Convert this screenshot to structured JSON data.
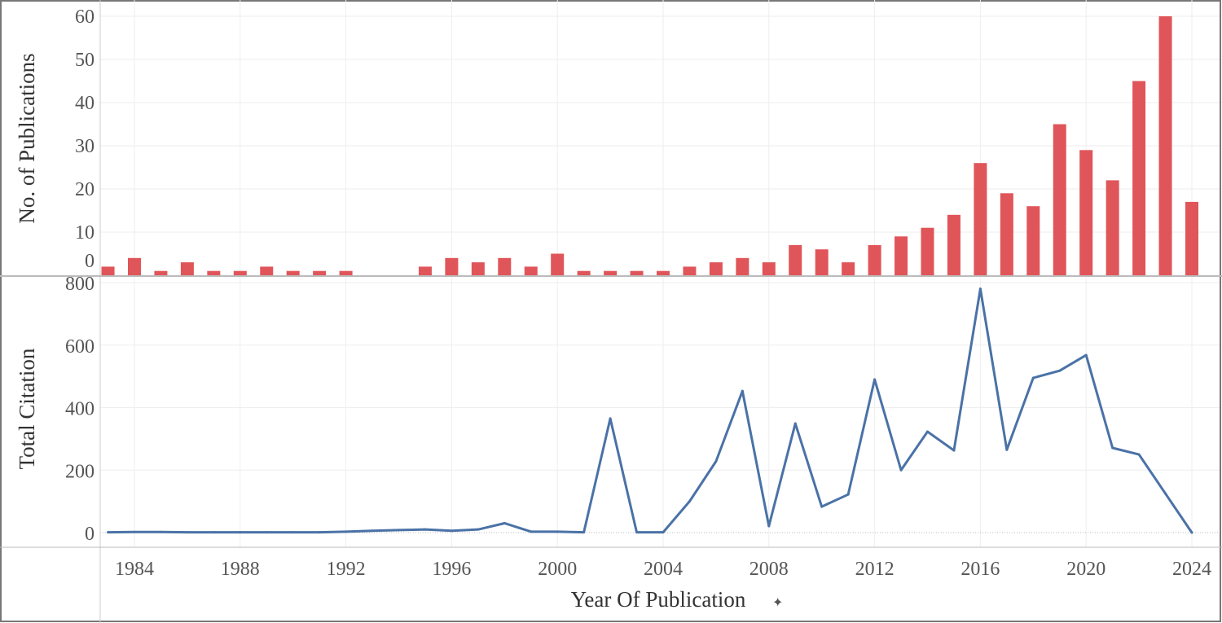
{
  "chart_data": [
    {
      "type": "bar",
      "ylabel": "No. of Publications",
      "ylim": [
        0,
        60
      ],
      "yticks": [
        0,
        10,
        20,
        30,
        40,
        50,
        60
      ],
      "color": "#e05559",
      "x": [
        1983,
        1984,
        1985,
        1986,
        1987,
        1988,
        1989,
        1990,
        1991,
        1992,
        1993,
        1994,
        1995,
        1996,
        1997,
        1998,
        1999,
        2000,
        2001,
        2002,
        2003,
        2004,
        2005,
        2006,
        2007,
        2008,
        2009,
        2010,
        2011,
        2012,
        2013,
        2014,
        2015,
        2016,
        2017,
        2018,
        2019,
        2020,
        2021,
        2022,
        2023,
        2024
      ],
      "values": [
        2,
        4,
        1,
        3,
        1,
        1,
        2,
        1,
        1,
        1,
        0,
        0,
        2,
        4,
        3,
        4,
        2,
        5,
        1,
        1,
        1,
        1,
        2,
        3,
        4,
        3,
        7,
        6,
        3,
        7,
        9,
        11,
        14,
        26,
        19,
        16,
        35,
        29,
        22,
        45,
        60,
        17
      ],
      "grid": true
    },
    {
      "type": "line",
      "ylabel": "Total Citation",
      "xlabel": "Year Of Publication",
      "ylim": [
        0,
        800
      ],
      "yticks": [
        0,
        200,
        400,
        600,
        800
      ],
      "xticks": [
        1984,
        1988,
        1992,
        1996,
        2000,
        2004,
        2008,
        2012,
        2016,
        2020,
        2024
      ],
      "xlim": [
        1983,
        2024
      ],
      "color": "#4a72a6",
      "x": [
        1983,
        1984,
        1985,
        1986,
        1987,
        1988,
        1989,
        1990,
        1991,
        1992,
        1993,
        1994,
        1995,
        1996,
        1997,
        1998,
        1999,
        2000,
        2001,
        2002,
        2003,
        2004,
        2005,
        2006,
        2007,
        2008,
        2009,
        2010,
        2011,
        2012,
        2013,
        2014,
        2015,
        2016,
        2017,
        2018,
        2019,
        2020,
        2021,
        2022,
        2023,
        2024
      ],
      "values": [
        1,
        2,
        2,
        1,
        1,
        1,
        1,
        1,
        1,
        3,
        6,
        8,
        10,
        6,
        10,
        30,
        3,
        3,
        1,
        365,
        1,
        1,
        100,
        228,
        453,
        21,
        349,
        83,
        122,
        490,
        200,
        323,
        263,
        780,
        265,
        495,
        518,
        568,
        271,
        250,
        125,
        0
      ],
      "grid": true
    }
  ]
}
